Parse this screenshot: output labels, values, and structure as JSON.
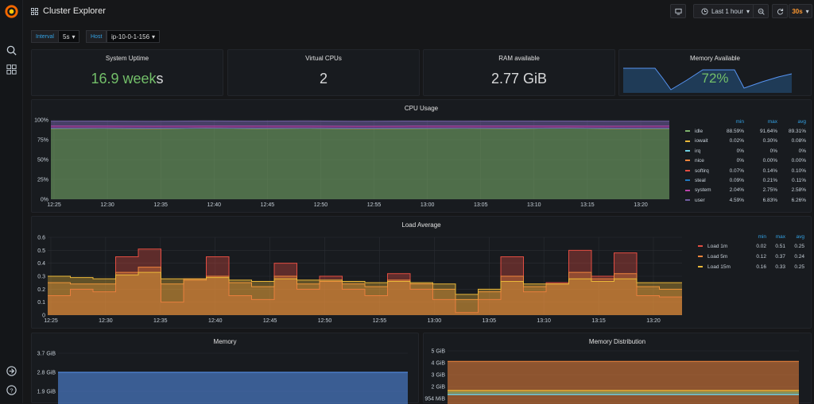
{
  "app": {
    "title": "Cluster Explorer"
  },
  "toolbar": {
    "time_range": "Last 1 hour",
    "refresh": "30s"
  },
  "variables": [
    {
      "label": "Interval",
      "value": "5s"
    },
    {
      "label": "Host",
      "value": "ip-10-0-1-156"
    }
  ],
  "stats": {
    "uptime": {
      "title": "System Uptime",
      "value": "16.9 week",
      "unit": "s"
    },
    "cpus": {
      "title": "Virtual CPUs",
      "value": "2"
    },
    "ram": {
      "title": "RAM available",
      "value": "2.77 GiB"
    },
    "mem": {
      "title": "Memory Available",
      "value": "72%"
    }
  },
  "colors": {
    "accent": "#33a2e5",
    "green": "#73bf69",
    "orange": "#ff780a",
    "refresh": "#ff9830",
    "bg": "#161719",
    "panel": "#181b1f"
  },
  "icons": [
    "grafana-logo",
    "search-icon",
    "dashboards-icon",
    "sign-in-icon",
    "help-icon",
    "grid-icon",
    "tv-icon",
    "clock-icon",
    "zoom-out-icon",
    "refresh-icon"
  ],
  "chart_data": [
    {
      "title": "CPU Usage",
      "type": "area",
      "x_ticks": [
        "12:25",
        "12:30",
        "12:35",
        "12:40",
        "12:45",
        "12:50",
        "12:55",
        "13:00",
        "13:05",
        "13:10",
        "13:15",
        "13:20"
      ],
      "y_ticks": [
        "100%",
        "75%",
        "50%",
        "25%",
        "0%"
      ],
      "ylim": [
        0,
        100
      ],
      "stacked": true,
      "legend_columns": [
        "min",
        "max",
        "avg"
      ],
      "series": [
        {
          "name": "idle",
          "color": "#7eb26d",
          "values": [
            89.3,
            89.4,
            89.2,
            89.5,
            89.3,
            89.4,
            89.2,
            89.3,
            89.4,
            89.3,
            89.5,
            89.2,
            89.3
          ],
          "min": "88.59%",
          "max": "91.64%",
          "avg": "89.31%"
        },
        {
          "name": "iowait",
          "color": "#eab839",
          "values": [
            0.1,
            0.1,
            0.1,
            0.1,
            0.1,
            0.1,
            0.1,
            0.1,
            0.1,
            0.1,
            0.1,
            0.1,
            0.1
          ],
          "min": "0.02%",
          "max": "0.30%",
          "avg": "0.08%"
        },
        {
          "name": "irq",
          "color": "#6ed0e0",
          "values": [
            0,
            0,
            0,
            0,
            0,
            0,
            0,
            0,
            0,
            0,
            0,
            0,
            0
          ],
          "min": "0%",
          "max": "0%",
          "avg": "0%"
        },
        {
          "name": "nice",
          "color": "#ef843c",
          "values": [
            0,
            0,
            0,
            0,
            0,
            0,
            0,
            0,
            0,
            0,
            0,
            0,
            0
          ],
          "min": "0%",
          "max": "0.00%",
          "avg": "0.00%"
        },
        {
          "name": "softirq",
          "color": "#e24d42",
          "values": [
            0.1,
            0.1,
            0.1,
            0.1,
            0.1,
            0.1,
            0.1,
            0.1,
            0.1,
            0.1,
            0.1,
            0.1,
            0.1
          ],
          "min": "0.07%",
          "max": "0.14%",
          "avg": "0.10%"
        },
        {
          "name": "steal",
          "color": "#1f78c1",
          "values": [
            0.1,
            0.1,
            0.1,
            0.1,
            0.1,
            0.1,
            0.1,
            0.1,
            0.1,
            0.1,
            0.1,
            0.1,
            0.1
          ],
          "min": "0.09%",
          "max": "0.21%",
          "avg": "0.11%"
        },
        {
          "name": "system",
          "color": "#ba43a9",
          "values": [
            2.6,
            2.5,
            2.6,
            2.5,
            2.6,
            2.6,
            2.5,
            2.6,
            2.5,
            2.6,
            2.5,
            2.6,
            2.6
          ],
          "min": "2.04%",
          "max": "2.75%",
          "avg": "2.58%"
        },
        {
          "name": "user",
          "color": "#705da0",
          "values": [
            6.2,
            6.3,
            6.2,
            6.3,
            6.2,
            6.3,
            6.2,
            6.3,
            6.2,
            6.3,
            6.2,
            6.3,
            6.2
          ],
          "min": "4.59%",
          "max": "6.83%",
          "avg": "6.26%"
        }
      ]
    },
    {
      "title": "Load Average",
      "type": "line",
      "x_ticks": [
        "12:25",
        "12:30",
        "12:35",
        "12:40",
        "12:45",
        "12:50",
        "12:55",
        "13:00",
        "13:05",
        "13:10",
        "13:15",
        "13:20"
      ],
      "y_ticks": [
        "0.6",
        "0.5",
        "0.4",
        "0.3",
        "0.2",
        "0.1",
        "0"
      ],
      "ylim": [
        0,
        0.6
      ],
      "legend_columns": [
        "min",
        "max",
        "avg"
      ],
      "series": [
        {
          "name": "Load 1m",
          "color": "#e24d42",
          "values": [
            0.15,
            0.2,
            0.18,
            0.45,
            0.51,
            0.1,
            0.28,
            0.45,
            0.15,
            0.12,
            0.4,
            0.2,
            0.3,
            0.2,
            0.15,
            0.32,
            0.2,
            0.12,
            0.02,
            0.12,
            0.45,
            0.18,
            0.25,
            0.5,
            0.3,
            0.48,
            0.15,
            0.14
          ],
          "min": "0.02",
          "max": "0.51",
          "avg": "0.25"
        },
        {
          "name": "Load 5m",
          "color": "#ef843c",
          "values": [
            0.25,
            0.24,
            0.24,
            0.33,
            0.37,
            0.24,
            0.27,
            0.3,
            0.25,
            0.22,
            0.3,
            0.24,
            0.26,
            0.24,
            0.22,
            0.27,
            0.24,
            0.2,
            0.12,
            0.18,
            0.3,
            0.22,
            0.24,
            0.33,
            0.28,
            0.32,
            0.22,
            0.2
          ],
          "min": "0.12",
          "max": "0.37",
          "avg": "0.24"
        },
        {
          "name": "Load 15m",
          "color": "#eab839",
          "values": [
            0.3,
            0.29,
            0.28,
            0.31,
            0.33,
            0.28,
            0.28,
            0.29,
            0.27,
            0.26,
            0.28,
            0.27,
            0.27,
            0.26,
            0.25,
            0.26,
            0.25,
            0.24,
            0.16,
            0.2,
            0.26,
            0.24,
            0.24,
            0.28,
            0.26,
            0.28,
            0.25,
            0.25
          ],
          "min": "0.16",
          "max": "0.33",
          "avg": "0.25"
        }
      ]
    },
    {
      "title": "Memory",
      "type": "area",
      "y_ticks": [
        "3.7 GiB",
        "2.8 GiB",
        "1.9 GiB"
      ],
      "series": [
        {
          "name": "",
          "color": "#5794f2",
          "values": [
            2.8,
            2.8,
            2.8,
            2.8,
            2.8,
            2.8,
            2.8,
            2.8
          ]
        }
      ]
    },
    {
      "title": "Memory Distribution",
      "type": "area",
      "y_ticks": [
        "5 GiB",
        "4 GiB",
        "3 GiB",
        "2 GiB",
        "954 MiB"
      ],
      "series": [
        {
          "name": "",
          "color": "#ef843c",
          "values": [
            4.2,
            4.2,
            4.2,
            4.2,
            4.2,
            4.2,
            4.2,
            4.2
          ]
        }
      ]
    }
  ]
}
